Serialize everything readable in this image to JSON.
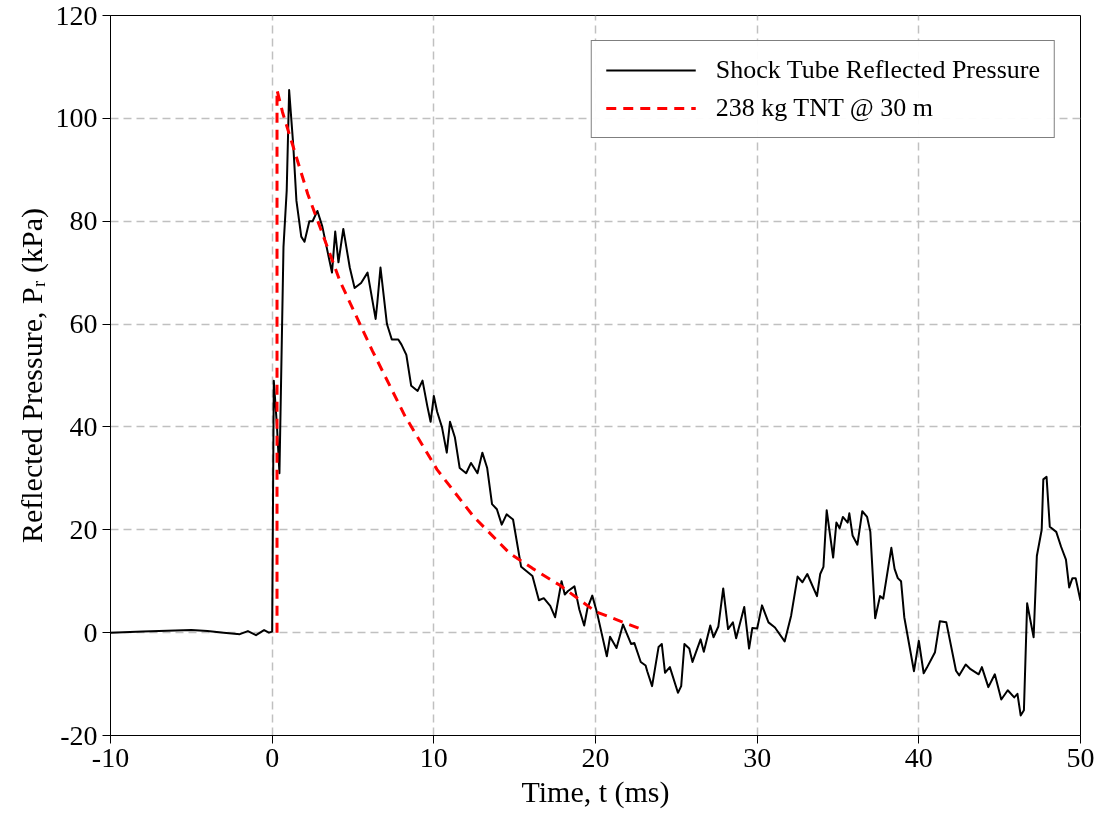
{
  "chart_data": {
    "type": "line",
    "xlabel": "Time, t (ms)",
    "ylabel": "Reflected Pressure, Pᵣ (kPa)",
    "xlim": [
      -10,
      50
    ],
    "xticks": [
      -10,
      0,
      10,
      20,
      30,
      40,
      50
    ],
    "ylim": [
      -20,
      120
    ],
    "yticks": [
      -20,
      0,
      20,
      40,
      60,
      80,
      100,
      120
    ],
    "grid": true,
    "legend": "top right",
    "line_style": "solid",
    "series": [
      {
        "name": "Shock Tube Reflected Pressure",
        "color": "#000000",
        "x": [
          -10,
          -8,
          -6,
          -5,
          -4,
          -3,
          -2,
          -1.5,
          -1,
          -0.5,
          -0.2,
          0,
          0.1,
          0.3,
          0.45,
          0.7,
          0.9,
          1.05,
          1.3,
          1.5,
          1.8,
          2,
          2.3,
          2.5,
          2.8,
          3.1,
          3.5,
          3.7,
          3.9,
          4.1,
          4.4,
          4.8,
          5.1,
          5.5,
          5.9,
          6.4,
          6.5,
          6.7,
          7.1,
          7.4,
          7.8,
          8,
          8.3,
          8.6,
          9,
          9.3,
          9.6,
          9.8,
          10,
          10.2,
          10.5,
          10.8,
          11,
          11.3,
          11.6,
          12,
          12.3,
          12.7,
          13,
          13.3,
          13.6,
          13.9,
          14.2,
          14.5,
          14.9,
          15.4,
          16.1,
          16.5,
          16.8,
          17.2,
          17.5,
          17.9,
          18.1,
          18.3,
          18.7,
          19.0,
          19.3,
          19.5,
          19.8,
          20.1,
          20.7,
          20.9,
          21.3,
          21.7,
          22.2,
          22.4,
          22.8,
          23.1,
          23.2,
          23.5,
          23.9,
          24.1,
          24.3,
          24.6,
          25.1,
          25.3,
          25.5,
          25.8,
          26.0,
          26.5,
          26.7,
          27.1,
          27.3,
          27.6,
          27.9,
          28.2,
          28.5,
          28.7,
          29.2,
          29.5,
          29.7,
          30.0,
          30.3,
          30.7,
          31.1,
          31.7,
          32.1,
          32.5,
          32.8,
          33.1,
          33.7,
          33.9,
          34.1,
          34.3,
          34.7,
          34.9,
          35.1,
          35.3,
          35.6,
          35.7,
          35.9,
          36.2,
          36.5,
          36.8,
          37.0,
          37.3,
          37.6,
          37.8,
          38.3,
          38.5,
          38.7,
          38.9,
          39.1,
          39.7,
          40.0,
          40.3,
          40.5,
          41.0,
          41.3,
          41.7,
          42.3,
          42.5,
          42.9,
          43.2,
          43.7,
          43.9,
          44.3,
          44.7,
          45.1,
          45.5,
          45.9,
          46.1,
          46.3,
          46.5,
          46.7,
          47.1,
          47.3,
          47.6,
          47.7,
          47.9,
          48.1,
          48.5,
          48.8,
          49.1,
          49.3,
          49.5,
          49.7,
          50.0
        ],
        "values": [
          0,
          0.2,
          0.4,
          0.5,
          0.3,
          0,
          -0.3,
          0.3,
          -0.5,
          0.5,
          0,
          0.2,
          49,
          40,
          31,
          75,
          86,
          105.5,
          95,
          84,
          77,
          76,
          80,
          80,
          82,
          79,
          73,
          70,
          78,
          72,
          78.5,
          71,
          67,
          68,
          70,
          61,
          64,
          71,
          60,
          57,
          57,
          56,
          54,
          48,
          47,
          49,
          44,
          41,
          46,
          43,
          40,
          35,
          41,
          38,
          32,
          31,
          33,
          31,
          35,
          32,
          25,
          24,
          21,
          23,
          22,
          12.8,
          11,
          6.3,
          6.7,
          5.2,
          3,
          10,
          7.4,
          8.1,
          9,
          4.5,
          1.4,
          4.7,
          7.2,
          3.8,
          -4.6,
          -0.8,
          -3,
          1.6,
          -2.2,
          -2,
          -5.7,
          -6.4,
          -7.5,
          -10.4,
          -2.8,
          -2.2,
          -7.8,
          -6.7,
          -11.7,
          -10.4,
          -2.2,
          -3.1,
          -5.7,
          -1.3,
          -3.7,
          1.4,
          -0.9,
          1.2,
          8.6,
          0.7,
          2,
          -1.1,
          5,
          -3.1,
          0.9,
          0.8,
          5.3,
          2,
          1,
          -1.7,
          3.3,
          10.9,
          9.8,
          11.4,
          7.1,
          11.4,
          12.8,
          23.8,
          14.6,
          21.4,
          20.3,
          22.5,
          21.4,
          23.2,
          18.9,
          17.1,
          23.6,
          22.5,
          19.6,
          2.8,
          7.1,
          6.6,
          16.5,
          12.4,
          10.6,
          10,
          3,
          -7.5,
          -1.6,
          -7.9,
          -6.8,
          -3.8,
          2.2,
          2,
          -7.4,
          -8.3,
          -6.2,
          -7.1,
          -8.1,
          -6.7,
          -10.6,
          -8.1,
          -13,
          -11.2,
          -12.6,
          -11.9,
          -16.1,
          -15.1,
          5.7,
          -0.9,
          14.9,
          20,
          29.8,
          30.3,
          20.6,
          19.6,
          16.7,
          14.2,
          8.8,
          10.6,
          10.6,
          6.2
        ]
      },
      {
        "name": "238 kg TNT @ 30 m",
        "color": "#ff0000",
        "line_style": "dashed",
        "x": [
          0.3,
          0.3,
          0.64,
          2.2,
          4.2,
          6.2,
          8.2,
          10.2,
          12.45,
          14.7,
          16.1,
          17.8,
          20,
          22.8,
          23
        ],
        "values": [
          0,
          105.5,
          101.2,
          85.3,
          68.3,
          54.8,
          42.2,
          31.7,
          22.6,
          15.4,
          12.5,
          9.2,
          4.1,
          0.7,
          0.5
        ]
      }
    ]
  }
}
